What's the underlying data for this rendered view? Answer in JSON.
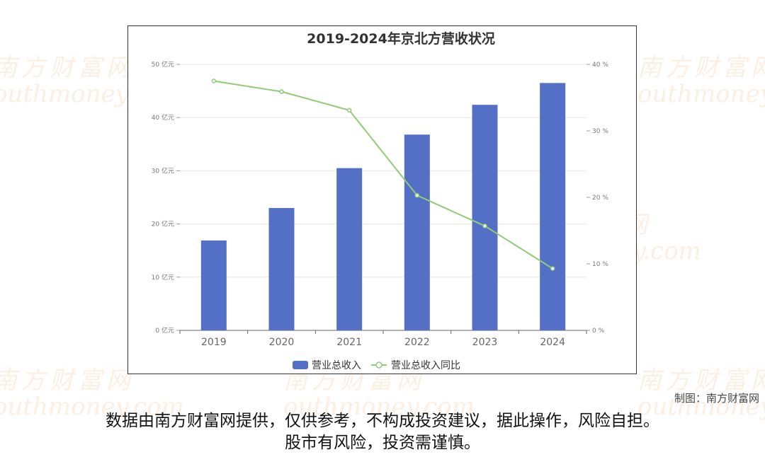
{
  "watermark": {
    "cn": "南方财富网",
    "en": "outhmoney.com",
    "color": "#f4c79a"
  },
  "chart_data": {
    "type": "bar+line",
    "title": "2019-2024年京北方营收状况",
    "categories": [
      "2019",
      "2020",
      "2021",
      "2022",
      "2023",
      "2024"
    ],
    "series": [
      {
        "name": "营业总收入",
        "kind": "bar",
        "axis": "left",
        "color": "#5470c6",
        "values": [
          16.9,
          23.0,
          30.5,
          36.8,
          42.4,
          46.5
        ]
      },
      {
        "name": "营业总收入同比",
        "kind": "line",
        "axis": "right",
        "color": "#91cc75",
        "values": [
          37.5,
          35.9,
          33.1,
          20.3,
          15.7,
          9.3
        ]
      }
    ],
    "left_axis": {
      "min": 0,
      "max": 50,
      "ticks": [
        "0 亿元",
        "10 亿元",
        "20 亿元",
        "30 亿元",
        "40 亿元",
        "50 亿元"
      ]
    },
    "right_axis": {
      "min": 0,
      "max": 40,
      "ticks": [
        "0 %",
        "10 %",
        "20 %",
        "30 %",
        "40 %"
      ]
    },
    "grid": true,
    "legend": "bottom"
  },
  "credit": "制图：南方财富网",
  "disclaimer": {
    "line1": "数据由南方财富网提供，仅供参考，不构成投资建议，据此操作，风险自担。",
    "line2": "股市有风险，投资需谨慎。"
  }
}
